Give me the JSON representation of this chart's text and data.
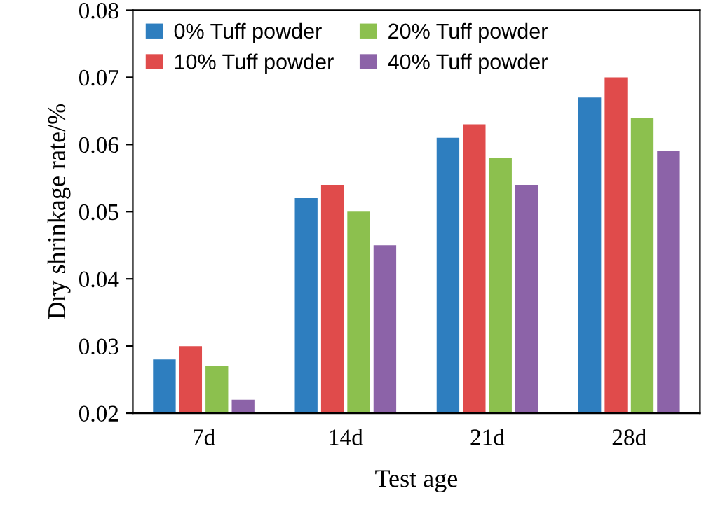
{
  "chart_data": {
    "type": "bar",
    "xlabel": "Test age",
    "ylabel": "Dry shrinkage rate/%",
    "categories": [
      "7d",
      "14d",
      "21d",
      "28d"
    ],
    "series": [
      {
        "name": "0% Tuff powder",
        "color": "#2e7ebf",
        "values": [
          0.028,
          0.052,
          0.061,
          0.067
        ]
      },
      {
        "name": "10% Tuff powder",
        "color": "#e04b4b",
        "values": [
          0.03,
          0.054,
          0.063,
          0.07
        ]
      },
      {
        "name": "20% Tuff powder",
        "color": "#8cc04e",
        "values": [
          0.027,
          0.05,
          0.058,
          0.064
        ]
      },
      {
        "name": "40% Tuff powder",
        "color": "#8c63a8",
        "values": [
          0.022,
          0.045,
          0.054,
          0.059
        ]
      }
    ],
    "ylim": [
      0.02,
      0.08
    ],
    "yticks": [
      0.02,
      0.03,
      0.04,
      0.05,
      0.06,
      0.07,
      0.08
    ],
    "grid": false,
    "legend": "top left"
  }
}
